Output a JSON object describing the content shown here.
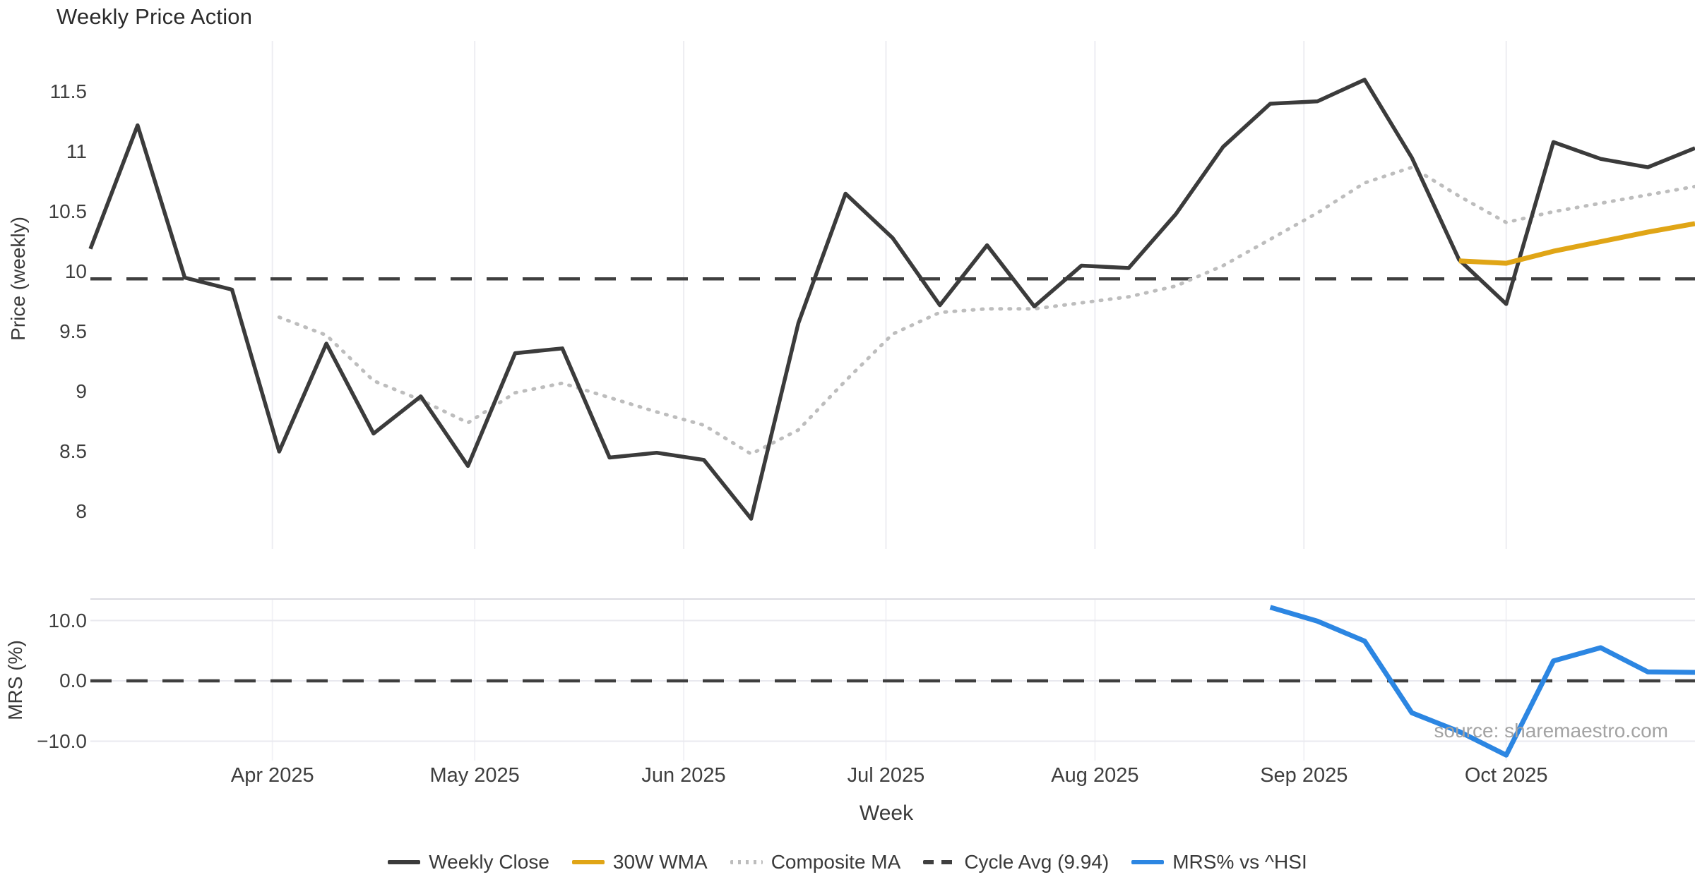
{
  "title": "Weekly Price Action",
  "watermark": "source: sharemaestro.com",
  "chart_data": {
    "type": "line",
    "title": "Weekly Price Action",
    "xlabel": "Week",
    "x_unit": "week_index",
    "x": [
      1,
      2,
      3,
      4,
      5,
      6,
      7,
      8,
      9,
      10,
      11,
      12,
      13,
      14,
      15,
      16,
      17,
      18,
      19,
      20,
      21,
      22,
      23,
      24,
      25,
      26,
      27,
      28,
      29,
      30,
      31,
      32,
      33,
      34,
      35
    ],
    "x_ticks": [
      {
        "label": "Apr 2025",
        "pos": 3.857
      },
      {
        "label": "May 2025",
        "pos": 8.143
      },
      {
        "label": "Jun 2025",
        "pos": 12.571
      },
      {
        "label": "Jul 2025",
        "pos": 16.857
      },
      {
        "label": "Aug 2025",
        "pos": 21.286
      },
      {
        "label": "Sep 2025",
        "pos": 25.714
      },
      {
        "label": "Oct 2025",
        "pos": 30.0
      }
    ],
    "panels": [
      {
        "name": "price",
        "ylabel": "Price (weekly)",
        "ylim": [
          7.73,
          11.95
        ],
        "grid": "vertical-only",
        "yticks": [
          {
            "label": "11.5",
            "value": 11.5
          },
          {
            "label": "11",
            "value": 11.0
          },
          {
            "label": "10.5",
            "value": 10.5
          },
          {
            "label": "10",
            "value": 10.0
          },
          {
            "label": "9.5",
            "value": 9.5
          },
          {
            "label": "9",
            "value": 9.0
          },
          {
            "label": "8.5",
            "value": 8.5
          },
          {
            "label": "8",
            "value": 8.0
          }
        ],
        "series": [
          {
            "name": "Weekly Close",
            "color": "#3B3B3B",
            "style": "solid",
            "width": 5.5,
            "values": [
              10.19,
              11.22,
              9.95,
              9.85,
              8.5,
              9.4,
              8.65,
              8.96,
              8.38,
              9.32,
              9.36,
              8.45,
              8.49,
              8.43,
              7.94,
              9.57,
              10.65,
              10.28,
              9.72,
              10.22,
              9.71,
              10.05,
              10.03,
              10.48,
              11.04,
              11.4,
              11.42,
              11.6,
              10.95,
              10.1,
              9.73,
              11.08,
              10.94,
              10.87,
              11.03
            ]
          },
          {
            "name": "30W WMA",
            "color": "#E0A516",
            "style": "solid",
            "width": 7,
            "values": [
              null,
              null,
              null,
              null,
              null,
              null,
              null,
              null,
              null,
              null,
              null,
              null,
              null,
              null,
              null,
              null,
              null,
              null,
              null,
              null,
              null,
              null,
              null,
              null,
              null,
              null,
              null,
              null,
              null,
              10.09,
              10.07,
              10.17,
              10.25,
              10.33,
              10.4
            ]
          },
          {
            "name": "Composite MA",
            "color": "#BDBDBD",
            "style": "dotted",
            "width": 5,
            "values": [
              null,
              null,
              null,
              null,
              9.62,
              9.47,
              9.09,
              8.93,
              8.74,
              8.99,
              9.07,
              8.95,
              8.83,
              8.72,
              8.48,
              8.68,
              9.09,
              9.48,
              9.66,
              9.69,
              9.69,
              9.74,
              9.79,
              9.88,
              10.05,
              10.27,
              10.49,
              10.74,
              10.87,
              10.63,
              10.41,
              10.5,
              10.57,
              10.64,
              10.71
            ]
          },
          {
            "name": "Cycle Avg (9.94)",
            "color": "#3F3F3F",
            "style": "dashed",
            "width": 4.5,
            "constant": 9.94
          }
        ]
      },
      {
        "name": "mrs",
        "ylabel": "MRS (%)",
        "ylim": [
          -13.6,
          13.6
        ],
        "grid": "horizontal",
        "zero_line": 0.0,
        "yticks": [
          {
            "label": "10.0",
            "value": 10.0
          },
          {
            "label": "0.0",
            "value": 0.0
          },
          {
            "label": "−10.0",
            "value": -10.0
          }
        ],
        "series": [
          {
            "name": "MRS% vs ^HSI",
            "color": "#2C86E2",
            "style": "solid",
            "width": 7,
            "values": [
              null,
              null,
              null,
              null,
              null,
              null,
              null,
              null,
              null,
              null,
              null,
              null,
              null,
              null,
              null,
              null,
              null,
              null,
              null,
              null,
              null,
              null,
              null,
              null,
              null,
              12.2,
              9.9,
              6.6,
              -5.3,
              -8.4,
              -12.3,
              3.3,
              5.5,
              1.5,
              1.4
            ]
          }
        ]
      }
    ],
    "legend": [
      {
        "label": "Weekly Close",
        "color": "#3B3B3B",
        "style": "solid"
      },
      {
        "label": "30W WMA",
        "color": "#E0A516",
        "style": "solid"
      },
      {
        "label": "Composite MA",
        "color": "#BDBDBD",
        "style": "dotted"
      },
      {
        "label": "Cycle Avg (9.94)",
        "color": "#3F3F3F",
        "style": "dashed"
      },
      {
        "label": "MRS% vs ^HSI",
        "color": "#2C86E2",
        "style": "solid"
      }
    ],
    "source_note": "source: sharemaestro.com"
  }
}
